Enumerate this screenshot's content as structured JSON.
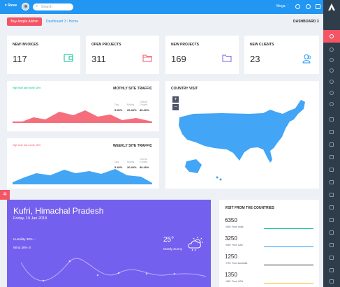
{
  "header": {
    "user_name": "Steve",
    "search_placeholder": "Search",
    "mega_label": "Mega"
  },
  "toolbar": {
    "buy_label": "Buy Ample Admin",
    "breadcrumb_home": "Dashboard 3",
    "breadcrumb_sep": "/",
    "breadcrumb_current": "Home",
    "page_title": "DASHBOARD 3"
  },
  "stats": [
    {
      "title": "NEW INVOICES",
      "value": "117",
      "icon": "wallet-icon",
      "color": "#00c292"
    },
    {
      "title": "OPEN PROJECTS",
      "value": "311",
      "icon": "folder-icon",
      "color": "#f35565"
    },
    {
      "title": "NEW PROJECTS",
      "value": "169",
      "icon": "folder-icon",
      "color": "#7460ee"
    },
    {
      "title": "NEW CLIENTS",
      "value": "23",
      "icon": "users-icon",
      "color": "#2196f3"
    }
  ],
  "monthly": {
    "title": "MOTHLY SITE TRAFFIC",
    "note": "High than last month 18% ",
    "labels": [
      "Day",
      "Mothly",
      "Overal Growth"
    ],
    "values": [
      "5.40%",
      "20.40%",
      "80.40%"
    ]
  },
  "weekly": {
    "title": "WEEKLY SITE TRAFFIC",
    "note": "High than last month 18% ",
    "labels": [
      "Day",
      "Mothly",
      "Overal Growth"
    ],
    "values": [
      "5.40%",
      "20.40%",
      "80.40%"
    ]
  },
  "map": {
    "title": "COUNTRY VISIT",
    "zoom_in": "+",
    "zoom_out": "−"
  },
  "weather": {
    "city": "Kufri, Himachal Pradesh",
    "date": "Friday, 19 Jan 2018",
    "humidity": "Humidity 38%",
    "wind": "Wind 38%",
    "temp": "25°",
    "condition": "Mostly Sunny"
  },
  "countries": {
    "title": "VISIT FROM THE COUNTRIES",
    "rows": [
      {
        "value": "6350",
        "pct": "48%",
        "from": "From India",
        "color": "#00c292"
      },
      {
        "value": "3250",
        "pct": "98%",
        "from": "From UAE",
        "color": "#2196f3"
      },
      {
        "value": "1250",
        "pct": "75%",
        "from": "From Australia",
        "color": "#2b2b2b"
      },
      {
        "value": "1350",
        "pct": "48%",
        "from": "From USA",
        "color": "#ffb22b"
      }
    ]
  },
  "colors": {
    "topbar": "#2196f3",
    "sidebar": "#2f3d4a",
    "accent": "#f35565",
    "weather": "#7460ee"
  }
}
